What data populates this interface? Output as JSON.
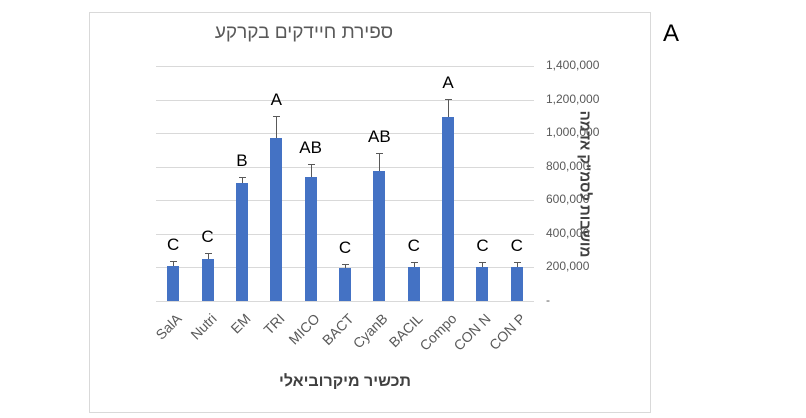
{
  "panel_label": "A",
  "chart_data": {
    "type": "bar",
    "title": "ספירת חיידקים בקרקע",
    "xlabel": "תכשיר מיקרוביאלי",
    "ylabel": "מושבות לסמ\"ק אדמה",
    "ylim": [
      0,
      1400000
    ],
    "yticks": [
      "-",
      "200,000",
      "400,000",
      "600,000",
      "800,000",
      "1,000,000",
      "1,200,000",
      "1,400,000"
    ],
    "grid": true,
    "legend": null,
    "categories": [
      "SalA",
      "Nutri",
      "EM",
      "TRI",
      "MICO",
      "BACT",
      "CyanB",
      "BACIL",
      "Compo",
      "CON N",
      "CON P"
    ],
    "values": [
      210000,
      250000,
      705000,
      970000,
      740000,
      195000,
      775000,
      205000,
      1095000,
      205000,
      205000
    ],
    "error_plus": [
      30000,
      35000,
      35000,
      130000,
      75000,
      25000,
      105000,
      25000,
      110000,
      25000,
      25000
    ],
    "significance_letters": [
      "C",
      "C",
      "B",
      "A",
      "AB",
      "C",
      "AB",
      "C",
      "A",
      "C",
      "C"
    ],
    "bar_color": "#4472c4"
  }
}
